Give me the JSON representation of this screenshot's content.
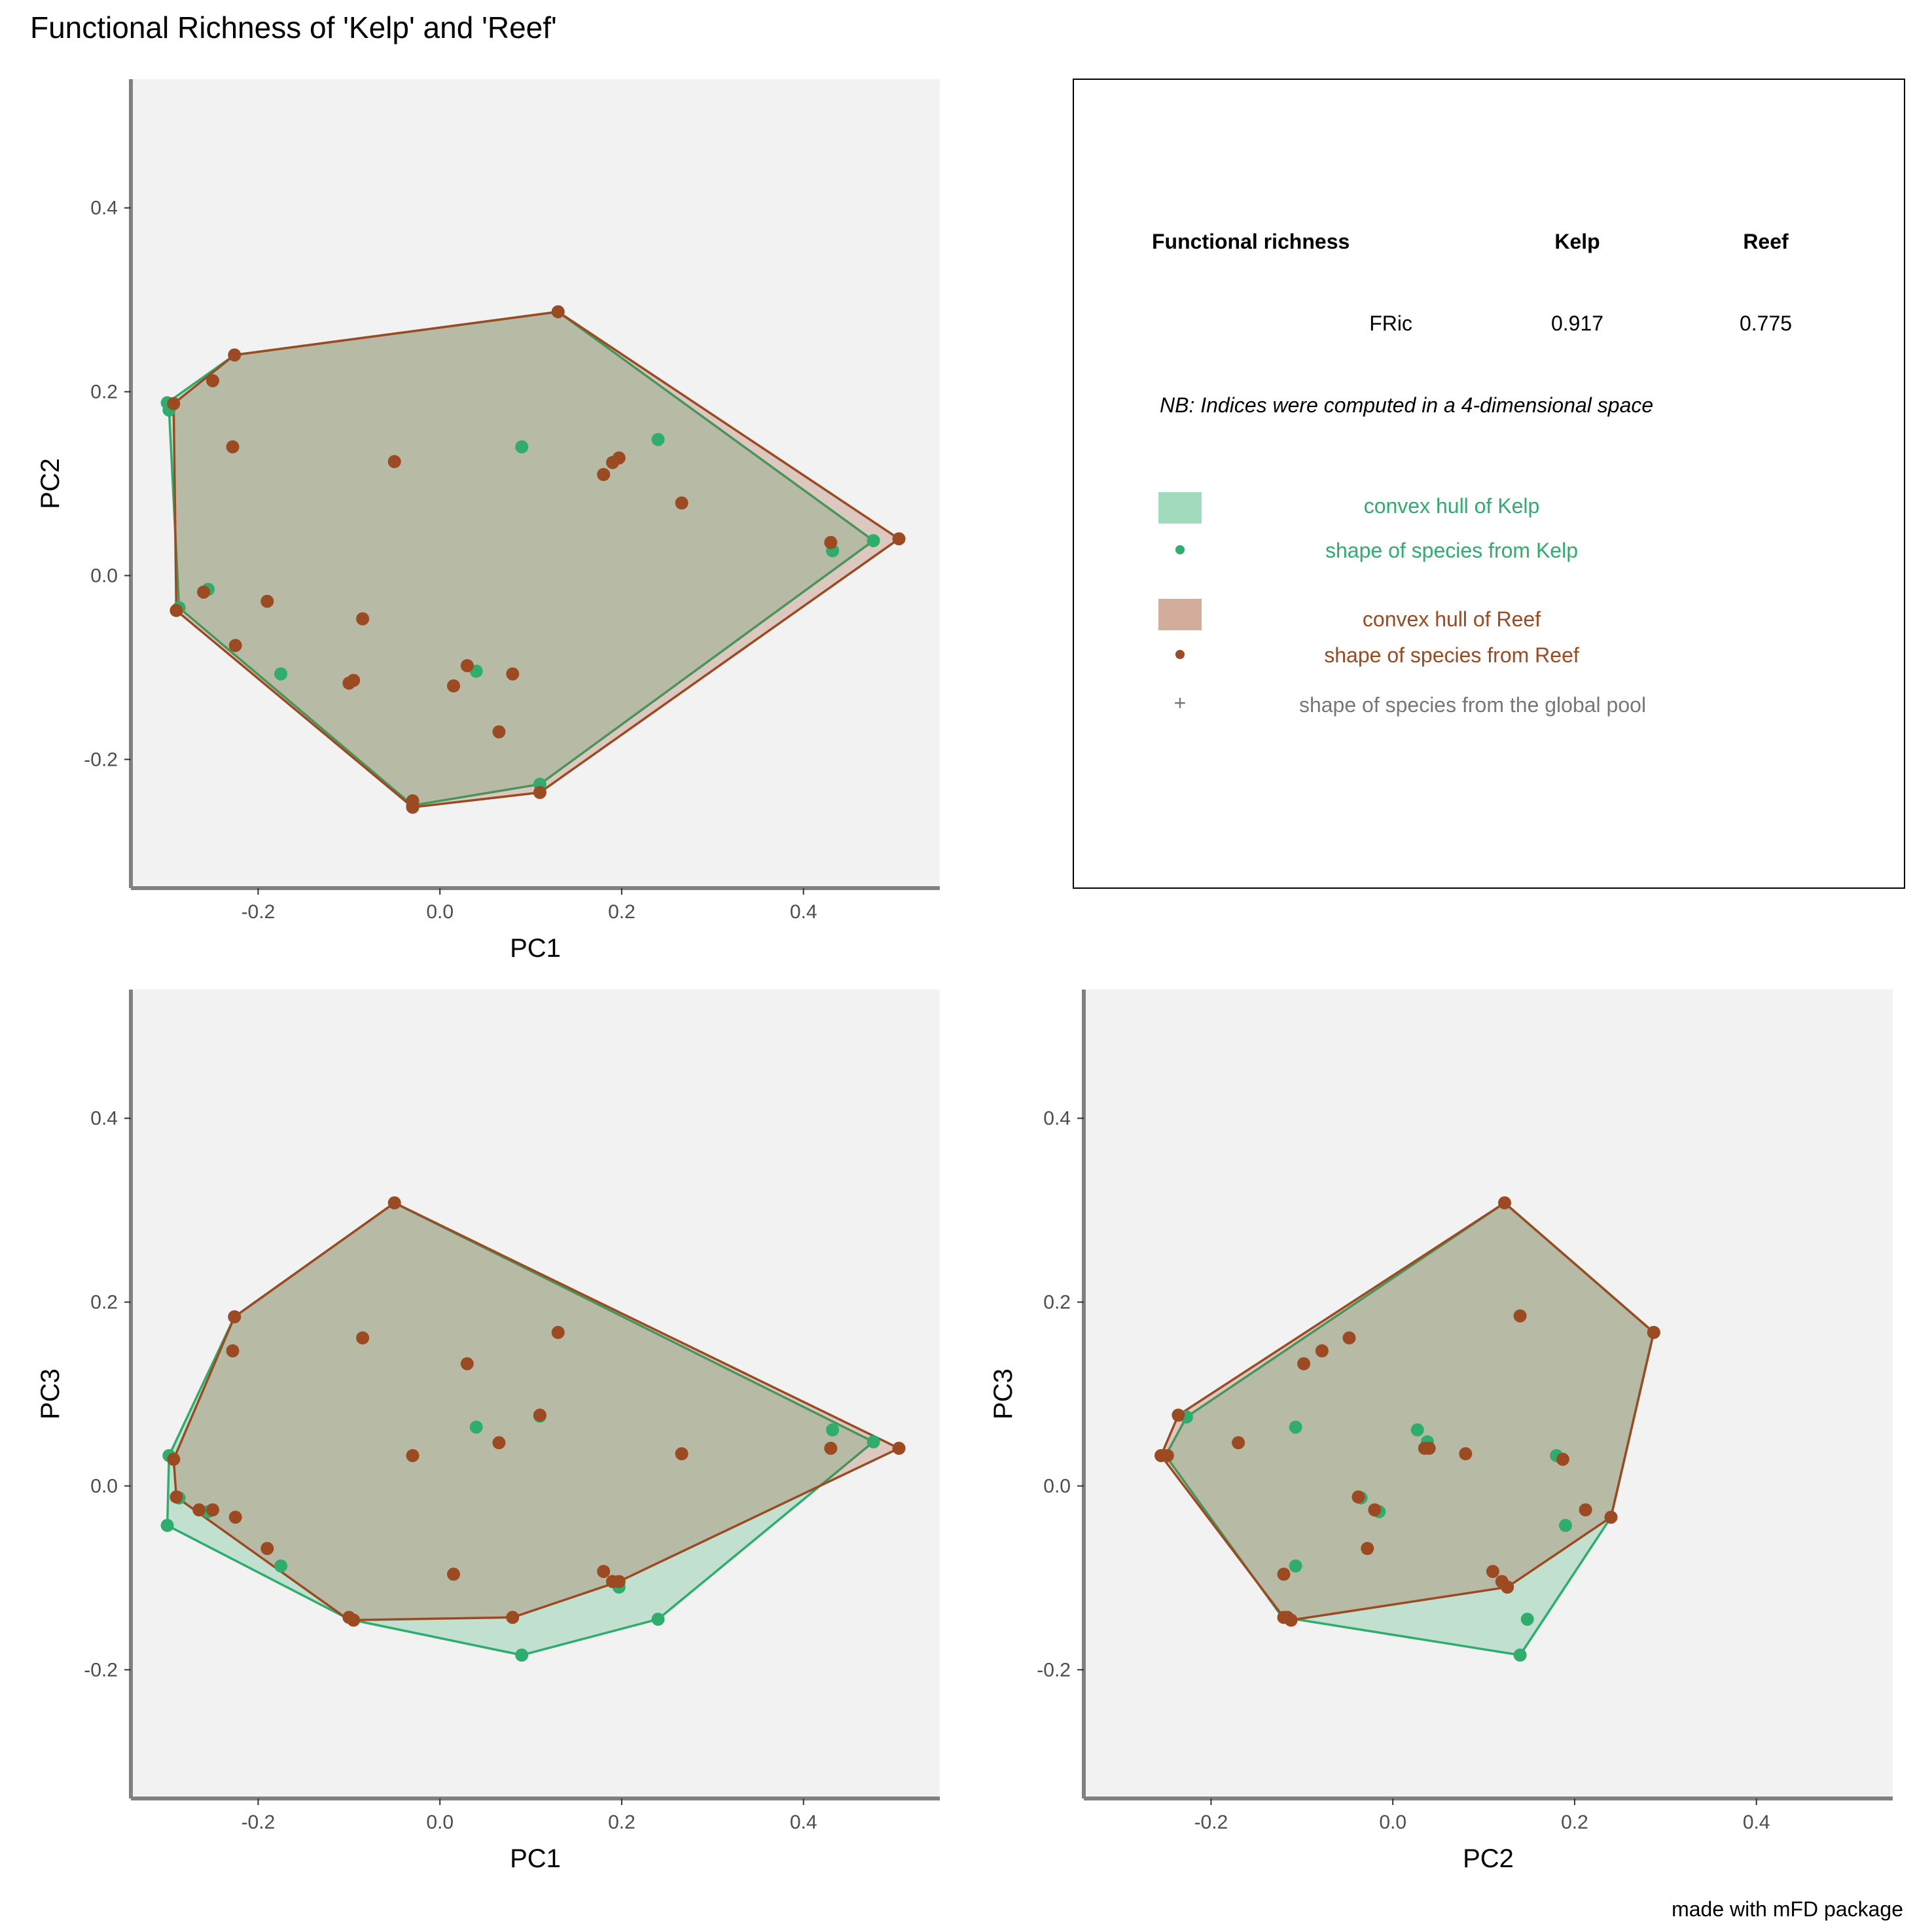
{
  "title": "Functional Richness of 'Kelp' and 'Reef'",
  "caption": "made with mFD package",
  "colors": {
    "kelp": "#2EAD6D",
    "reef": "#9B4A22",
    "pool": "#777777",
    "panel_bg": "#F2F2F2",
    "axis_line": "#808080"
  },
  "chart_data": [
    {
      "type": "scatter",
      "xlabel": "PC1",
      "ylabel": "PC2",
      "xlim": [
        -0.34,
        0.55
      ],
      "ylim": [
        -0.34,
        0.54
      ],
      "xticks": [
        -0.2,
        0.0,
        0.2,
        0.4
      ],
      "yticks": [
        -0.2,
        0.0,
        0.2,
        0.4
      ],
      "xtick_labels": [
        "-0.2",
        "0.0",
        "0.2",
        "0.4"
      ],
      "ytick_labels": [
        "-0.2",
        "0.0",
        "0.2",
        "0.4"
      ],
      "series": [
        {
          "key": "kelp",
          "hull": [
            [
              -0.3,
              0.188
            ],
            [
              -0.226,
              0.24
            ],
            [
              0.13,
              0.287
            ],
            [
              0.477,
              0.038
            ],
            [
              0.11,
              -0.227
            ],
            [
              -0.03,
              -0.25
            ],
            [
              -0.287,
              -0.035
            ],
            [
              -0.298,
              0.18
            ]
          ],
          "points": [
            [
              -0.3,
              0.188
            ],
            [
              -0.298,
              0.18
            ],
            [
              -0.287,
              -0.035
            ],
            [
              -0.255,
              -0.015
            ],
            [
              -0.175,
              -0.107
            ],
            [
              0.09,
              0.14
            ],
            [
              0.04,
              -0.104
            ],
            [
              0.11,
              -0.227
            ],
            [
              0.24,
              0.148
            ],
            [
              0.432,
              0.027
            ],
            [
              0.477,
              0.038
            ],
            [
              -0.03,
              -0.25
            ]
          ]
        },
        {
          "key": "reef",
          "hull": [
            [
              -0.293,
              0.187
            ],
            [
              -0.226,
              0.24
            ],
            [
              0.13,
              0.287
            ],
            [
              0.505,
              0.04
            ],
            [
              0.11,
              -0.236
            ],
            [
              -0.03,
              -0.252
            ],
            [
              -0.29,
              -0.038
            ]
          ],
          "points": [
            [
              -0.293,
              0.187
            ],
            [
              -0.226,
              0.24
            ],
            [
              -0.25,
              0.212
            ],
            [
              -0.228,
              0.14
            ],
            [
              -0.05,
              0.124
            ],
            [
              0.13,
              0.287
            ],
            [
              0.18,
              0.11
            ],
            [
              0.19,
              0.123
            ],
            [
              0.197,
              0.128
            ],
            [
              0.266,
              0.079
            ],
            [
              0.43,
              0.036
            ],
            [
              0.505,
              0.04
            ],
            [
              -0.29,
              -0.038
            ],
            [
              -0.26,
              -0.018
            ],
            [
              -0.19,
              -0.028
            ],
            [
              -0.085,
              -0.047
            ],
            [
              -0.225,
              -0.076
            ],
            [
              -0.1,
              -0.117
            ],
            [
              -0.095,
              -0.114
            ],
            [
              0.015,
              -0.12
            ],
            [
              0.03,
              -0.098
            ],
            [
              0.08,
              -0.107
            ],
            [
              0.065,
              -0.17
            ],
            [
              0.11,
              -0.236
            ],
            [
              -0.03,
              -0.245
            ],
            [
              -0.03,
              -0.252
            ]
          ]
        }
      ]
    },
    {
      "type": "scatter",
      "xlabel": "PC1",
      "ylabel": "PC3",
      "xlim": [
        -0.34,
        0.55
      ],
      "ylim": [
        -0.34,
        0.54
      ],
      "xticks": [
        -0.2,
        0.0,
        0.2,
        0.4
      ],
      "yticks": [
        -0.2,
        0.0,
        0.2,
        0.4
      ],
      "xtick_labels": [
        "-0.2",
        "0.0",
        "0.2",
        "0.4"
      ],
      "ytick_labels": [
        "-0.2",
        "0.0",
        "0.2",
        "0.4"
      ],
      "series": [
        {
          "key": "kelp",
          "hull": [
            [
              -0.298,
              0.033
            ],
            [
              -0.226,
              0.184
            ],
            [
              -0.05,
              0.308
            ],
            [
              0.477,
              0.048
            ],
            [
              0.24,
              -0.145
            ],
            [
              0.09,
              -0.184
            ],
            [
              -0.1,
              -0.145
            ],
            [
              -0.3,
              -0.043
            ]
          ],
          "points": [
            [
              -0.298,
              0.033
            ],
            [
              -0.3,
              -0.043
            ],
            [
              -0.287,
              -0.013
            ],
            [
              -0.255,
              -0.028
            ],
            [
              -0.175,
              -0.087
            ],
            [
              0.04,
              0.064
            ],
            [
              0.11,
              0.076
            ],
            [
              0.24,
              -0.145
            ],
            [
              0.09,
              -0.184
            ],
            [
              0.432,
              0.061
            ],
            [
              0.477,
              0.048
            ],
            [
              0.197,
              -0.11
            ]
          ]
        },
        {
          "key": "reef",
          "hull": [
            [
              -0.293,
              0.029
            ],
            [
              -0.226,
              0.184
            ],
            [
              -0.05,
              0.308
            ],
            [
              0.505,
              0.041
            ],
            [
              0.197,
              -0.104
            ],
            [
              0.08,
              -0.143
            ],
            [
              -0.1,
              -0.146
            ],
            [
              -0.29,
              -0.012
            ]
          ],
          "points": [
            [
              -0.293,
              0.029
            ],
            [
              -0.29,
              -0.012
            ],
            [
              -0.265,
              -0.026
            ],
            [
              -0.25,
              -0.026
            ],
            [
              -0.225,
              -0.034
            ],
            [
              -0.19,
              -0.068
            ],
            [
              -0.226,
              0.184
            ],
            [
              -0.228,
              0.147
            ],
            [
              -0.085,
              0.161
            ],
            [
              -0.05,
              0.308
            ],
            [
              0.13,
              0.167
            ],
            [
              0.03,
              0.133
            ],
            [
              0.11,
              0.077
            ],
            [
              0.065,
              0.047
            ],
            [
              -0.03,
              0.033
            ],
            [
              0.266,
              0.035
            ],
            [
              0.43,
              0.041
            ],
            [
              0.505,
              0.041
            ],
            [
              0.015,
              -0.096
            ],
            [
              0.18,
              -0.093
            ],
            [
              0.19,
              -0.104
            ],
            [
              0.197,
              -0.104
            ],
            [
              0.08,
              -0.143
            ],
            [
              -0.1,
              -0.143
            ],
            [
              -0.095,
              -0.146
            ]
          ]
        }
      ]
    },
    {
      "type": "scatter",
      "xlabel": "PC2",
      "ylabel": "PC3",
      "xlim": [
        -0.34,
        0.55
      ],
      "ylim": [
        -0.34,
        0.54
      ],
      "xticks": [
        -0.2,
        0.0,
        0.2,
        0.4
      ],
      "yticks": [
        -0.2,
        0.0,
        0.2,
        0.4
      ],
      "xtick_labels": [
        "-0.2",
        "0.0",
        "0.2",
        "0.4"
      ],
      "ytick_labels": [
        "-0.2",
        "0.0",
        "0.2",
        "0.4"
      ],
      "series": [
        {
          "key": "kelp",
          "hull": [
            [
              -0.227,
              0.075
            ],
            [
              0.123,
              0.308
            ],
            [
              0.287,
              0.167
            ],
            [
              0.24,
              -0.034
            ],
            [
              0.14,
              -0.184
            ],
            [
              -0.107,
              -0.145
            ],
            [
              -0.12,
              -0.145
            ],
            [
              -0.25,
              0.033
            ]
          ],
          "points": [
            [
              -0.227,
              0.075
            ],
            [
              -0.107,
              0.064
            ],
            [
              -0.107,
              -0.087
            ],
            [
              0.027,
              0.061
            ],
            [
              0.038,
              0.048
            ],
            [
              0.18,
              0.033
            ],
            [
              0.19,
              -0.043
            ],
            [
              0.148,
              -0.145
            ],
            [
              0.14,
              -0.184
            ],
            [
              -0.035,
              -0.013
            ],
            [
              -0.015,
              -0.028
            ],
            [
              0.287,
              0.167
            ]
          ]
        },
        {
          "key": "reef",
          "hull": [
            [
              -0.236,
              0.077
            ],
            [
              0.123,
              0.308
            ],
            [
              0.287,
              0.167
            ],
            [
              0.24,
              -0.034
            ],
            [
              0.126,
              -0.11
            ],
            [
              -0.112,
              -0.146
            ],
            [
              -0.12,
              -0.143
            ],
            [
              -0.255,
              0.033
            ]
          ],
          "points": [
            [
              -0.236,
              0.077
            ],
            [
              -0.255,
              0.033
            ],
            [
              -0.248,
              0.033
            ],
            [
              -0.17,
              0.047
            ],
            [
              -0.098,
              0.133
            ],
            [
              -0.078,
              0.147
            ],
            [
              -0.048,
              0.161
            ],
            [
              0.123,
              0.308
            ],
            [
              0.14,
              0.185
            ],
            [
              0.287,
              0.167
            ],
            [
              0.187,
              0.029
            ],
            [
              0.08,
              0.035
            ],
            [
              0.035,
              0.041
            ],
            [
              0.04,
              0.041
            ],
            [
              -0.038,
              -0.012
            ],
            [
              -0.02,
              -0.026
            ],
            [
              -0.028,
              -0.068
            ],
            [
              0.212,
              -0.026
            ],
            [
              0.24,
              -0.034
            ],
            [
              -0.12,
              -0.096
            ],
            [
              0.11,
              -0.093
            ],
            [
              0.12,
              -0.104
            ],
            [
              0.126,
              -0.11
            ],
            [
              -0.12,
              -0.143
            ],
            [
              -0.112,
              -0.146
            ],
            [
              -0.116,
              -0.143
            ]
          ]
        }
      ]
    }
  ],
  "info_panel": {
    "header": {
      "label": "Functional richness",
      "kelp": "Kelp",
      "reef": "Reef"
    },
    "row": {
      "index": "FRic",
      "kelp": "0.917",
      "reef": "0.775"
    },
    "note": "NB: Indices were computed in a 4-dimensional space",
    "legend": {
      "kelp_hull": "convex hull of Kelp",
      "kelp_points": "shape of species from Kelp",
      "reef_hull": "convex hull of Reef",
      "reef_points": "shape of species from Reef",
      "pool_points": "shape of species from the global pool"
    }
  }
}
